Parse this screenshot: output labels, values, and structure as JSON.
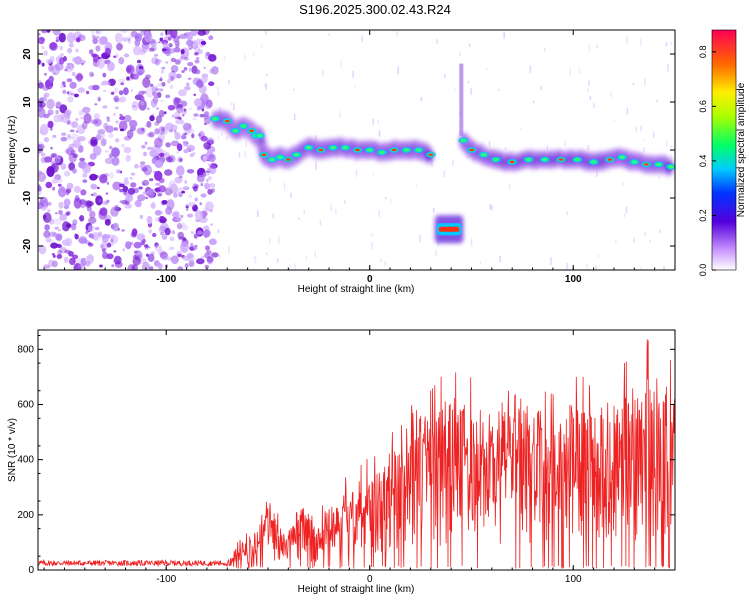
{
  "title": "S196.2025.300.02.43.R24",
  "colors": {
    "snr_line": "#ee2222",
    "scatter": "#8a2be2",
    "axis": "#000000"
  },
  "chart_data": [
    {
      "type": "heatmap",
      "name": "spectrogram",
      "xlabel": "Height of straight line (km)",
      "ylabel": "Frequency (Hz)",
      "xlim": [
        -163,
        150
      ],
      "ylim": [
        -25,
        25
      ],
      "x_ticks": [
        -100,
        0,
        100
      ],
      "x_tick_labels": [
        "-100",
        "0",
        "100"
      ],
      "y_ticks": [
        -20,
        -10,
        0,
        10,
        20
      ],
      "y_tick_labels": [
        "-20",
        "-10",
        "0",
        "10",
        "20"
      ],
      "noise_region": [
        -163,
        -76
      ],
      "ridge": [
        {
          "x": -76,
          "y": 6.5
        },
        {
          "x": -70,
          "y": 6
        },
        {
          "x": -66,
          "y": 4
        },
        {
          "x": -62,
          "y": 5
        },
        {
          "x": -58,
          "y": 4
        },
        {
          "x": -56,
          "y": 3
        },
        {
          "x": -54,
          "y": 3
        },
        {
          "x": -52,
          "y": -1
        },
        {
          "x": -48,
          "y": -2
        },
        {
          "x": -44,
          "y": -1.5
        },
        {
          "x": -40,
          "y": -2
        },
        {
          "x": -36,
          "y": -1
        },
        {
          "x": -30,
          "y": 0.5
        },
        {
          "x": -24,
          "y": 0
        },
        {
          "x": -18,
          "y": 0.5
        },
        {
          "x": -12,
          "y": 0.5
        },
        {
          "x": -6,
          "y": 0
        },
        {
          "x": 0,
          "y": 0
        },
        {
          "x": 6,
          "y": -0.5
        },
        {
          "x": 12,
          "y": 0
        },
        {
          "x": 18,
          "y": 0
        },
        {
          "x": 24,
          "y": 0
        },
        {
          "x": 30,
          "y": -1
        }
      ],
      "ridge2": [
        {
          "x": 46,
          "y": 2
        },
        {
          "x": 50,
          "y": 0
        },
        {
          "x": 56,
          "y": -1
        },
        {
          "x": 62,
          "y": -2
        },
        {
          "x": 70,
          "y": -2.5
        },
        {
          "x": 78,
          "y": -2
        },
        {
          "x": 86,
          "y": -2
        },
        {
          "x": 94,
          "y": -2
        },
        {
          "x": 102,
          "y": -2
        },
        {
          "x": 110,
          "y": -2.5
        },
        {
          "x": 118,
          "y": -2
        },
        {
          "x": 124,
          "y": -1.5
        },
        {
          "x": 130,
          "y": -2.5
        },
        {
          "x": 136,
          "y": -3
        },
        {
          "x": 142,
          "y": -3
        },
        {
          "x": 148,
          "y": -3.5
        }
      ],
      "blob_low": {
        "x": [
          32,
          46
        ],
        "y": -16.5
      },
      "colorbar": {
        "label": "Normalized spectral amplitude",
        "range": [
          0,
          0.88
        ],
        "ticks": [
          0.0,
          0.2,
          0.4,
          0.6,
          0.8
        ],
        "tick_labels": [
          "0.0",
          "0.2",
          "0.4",
          "0.6",
          "0.8"
        ]
      }
    },
    {
      "type": "line",
      "name": "snr",
      "xlabel": "Height of straight line (km)",
      "ylabel": "SNR (10 * v/v)",
      "xlim": [
        -163,
        150
      ],
      "ylim": [
        0,
        870
      ],
      "x_ticks": [
        -100,
        0,
        100
      ],
      "x_tick_labels": [
        "-100",
        "0",
        "100"
      ],
      "y_ticks": [
        0,
        200,
        400,
        600,
        800
      ],
      "y_tick_labels": [
        "0",
        "200",
        "400",
        "600",
        "800"
      ],
      "envelope": [
        {
          "x": -163,
          "y": 30
        },
        {
          "x": -70,
          "y": 30
        },
        {
          "x": -65,
          "y": 80
        },
        {
          "x": -60,
          "y": 110
        },
        {
          "x": -55,
          "y": 140
        },
        {
          "x": -50,
          "y": 250
        },
        {
          "x": -46,
          "y": 170
        },
        {
          "x": -40,
          "y": 130
        },
        {
          "x": -35,
          "y": 210
        },
        {
          "x": -30,
          "y": 200
        },
        {
          "x": -25,
          "y": 170
        },
        {
          "x": -20,
          "y": 220
        },
        {
          "x": -15,
          "y": 200
        },
        {
          "x": -10,
          "y": 310
        },
        {
          "x": -5,
          "y": 300
        },
        {
          "x": 0,
          "y": 330
        },
        {
          "x": 5,
          "y": 330
        },
        {
          "x": 10,
          "y": 400
        },
        {
          "x": 15,
          "y": 400
        },
        {
          "x": 20,
          "y": 560
        },
        {
          "x": 25,
          "y": 530
        },
        {
          "x": 30,
          "y": 520
        },
        {
          "x": 35,
          "y": 560
        },
        {
          "x": 40,
          "y": 600
        },
        {
          "x": 45,
          "y": 540
        },
        {
          "x": 50,
          "y": 560
        },
        {
          "x": 55,
          "y": 560
        },
        {
          "x": 60,
          "y": 500
        },
        {
          "x": 65,
          "y": 560
        },
        {
          "x": 70,
          "y": 620
        },
        {
          "x": 75,
          "y": 560
        },
        {
          "x": 80,
          "y": 540
        },
        {
          "x": 85,
          "y": 520
        },
        {
          "x": 90,
          "y": 510
        },
        {
          "x": 95,
          "y": 520
        },
        {
          "x": 100,
          "y": 560
        },
        {
          "x": 105,
          "y": 560
        },
        {
          "x": 110,
          "y": 520
        },
        {
          "x": 115,
          "y": 540
        },
        {
          "x": 120,
          "y": 580
        },
        {
          "x": 125,
          "y": 600
        },
        {
          "x": 130,
          "y": 620
        },
        {
          "x": 135,
          "y": 680
        },
        {
          "x": 140,
          "y": 640
        },
        {
          "x": 145,
          "y": 620
        },
        {
          "x": 150,
          "y": 600
        }
      ],
      "baseline_until": -70
    }
  ]
}
